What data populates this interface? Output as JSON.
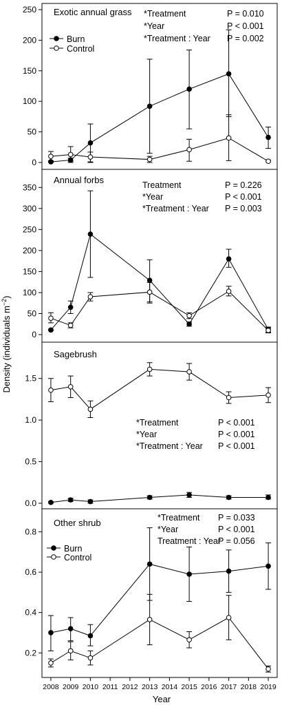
{
  "figure": {
    "ylabel_main": "Density (individuals m",
    "ylabel_sup": "−2",
    "ylabel_close": ")",
    "xlabel": "Year",
    "x_ticks": [
      2008,
      2009,
      2010,
      2011,
      2012,
      2013,
      2014,
      2015,
      2016,
      2017,
      2018,
      2019
    ]
  },
  "chart_data": [
    {
      "type": "line",
      "title": "Exotic annual grass",
      "ylim": [
        0,
        250
      ],
      "yticks": [
        0,
        50,
        100,
        150,
        200,
        250
      ],
      "legend": [
        "Burn",
        "Control"
      ],
      "stats": [
        {
          "term": "*Treatment",
          "p": "P = 0.010"
        },
        {
          "term": "*Year",
          "p": "P < 0.001"
        },
        {
          "term": "*Treatment : Year",
          "p": "P = 0.002"
        }
      ],
      "series": [
        {
          "name": "Burn",
          "x": [
            2008,
            2009,
            2010,
            2013,
            2015,
            2017,
            2019
          ],
          "y": [
            1,
            4,
            32,
            92,
            120,
            145,
            41
          ],
          "err_low": [
            0,
            2,
            0,
            15,
            55,
            75,
            23
          ],
          "err_high": [
            3,
            7,
            63,
            169,
            184,
            217,
            58
          ]
        },
        {
          "name": "Control",
          "x": [
            2008,
            2009,
            2010,
            2013,
            2015,
            2017,
            2019
          ],
          "y": [
            10,
            13,
            9,
            5,
            21,
            40,
            2
          ],
          "err_low": [
            2,
            0,
            1,
            0,
            2,
            3,
            1
          ],
          "err_high": [
            18,
            26,
            17,
            10,
            38,
            78,
            4
          ]
        }
      ]
    },
    {
      "type": "line",
      "title": "Annual forbs",
      "ylim": [
        0,
        375
      ],
      "yticks": [
        0,
        50,
        100,
        150,
        200,
        250,
        300,
        350
      ],
      "legend": [],
      "stats": [
        {
          "term": "Treatment",
          "p": "P = 0.226"
        },
        {
          "term": "*Year",
          "p": "P < 0.001"
        },
        {
          "term": "*Treatment : Year",
          "p": "P = 0.003"
        }
      ],
      "series": [
        {
          "name": "Burn",
          "x": [
            2008,
            2009,
            2010,
            2013,
            2015,
            2017,
            2019
          ],
          "y": [
            11,
            65,
            239,
            129,
            25,
            180,
            12
          ],
          "err_low": [
            9,
            50,
            136,
            75,
            20,
            160,
            6
          ],
          "err_high": [
            13,
            80,
            342,
            178,
            30,
            203,
            18
          ]
        },
        {
          "name": "Control",
          "x": [
            2008,
            2009,
            2010,
            2013,
            2015,
            2017,
            2019
          ],
          "y": [
            39,
            22,
            90,
            101,
            45,
            103,
            10
          ],
          "err_low": [
            28,
            16,
            80,
            78,
            38,
            92,
            4
          ],
          "err_high": [
            52,
            28,
            100,
            124,
            52,
            115,
            16
          ]
        }
      ]
    },
    {
      "type": "line",
      "title": "Sagebrush",
      "ylim": [
        -0.05,
        1.87
      ],
      "yticks": [
        0.0,
        0.5,
        1.0,
        1.5
      ],
      "legend": [],
      "stats": [
        {
          "term": "*Treatment",
          "p": "P < 0.001"
        },
        {
          "term": "*Year",
          "p": "P < 0.001"
        },
        {
          "term": "*Treatment : Year",
          "p": "P < 0.001"
        }
      ],
      "series": [
        {
          "name": "Burn",
          "x": [
            2008,
            2009,
            2010,
            2013,
            2015,
            2017,
            2019
          ],
          "y": [
            0.01,
            0.04,
            0.02,
            0.07,
            0.1,
            0.07,
            0.07
          ],
          "err_low": [
            0.0,
            0.02,
            0.0,
            0.05,
            0.07,
            0.05,
            0.05
          ],
          "err_high": [
            0.02,
            0.06,
            0.04,
            0.09,
            0.13,
            0.09,
            0.1
          ]
        },
        {
          "name": "Control",
          "x": [
            2008,
            2009,
            2010,
            2013,
            2015,
            2017,
            2019
          ],
          "y": [
            1.36,
            1.4,
            1.13,
            1.61,
            1.58,
            1.27,
            1.3
          ],
          "err_low": [
            1.22,
            1.27,
            1.03,
            1.53,
            1.48,
            1.2,
            1.21
          ],
          "err_high": [
            1.5,
            1.53,
            1.23,
            1.69,
            1.68,
            1.34,
            1.39
          ]
        }
      ]
    },
    {
      "type": "line",
      "title": "Other shrub",
      "ylim": [
        0.085,
        0.88
      ],
      "yticks": [
        0.2,
        0.4,
        0.6,
        0.8
      ],
      "legend": [
        "Burn",
        "Control"
      ],
      "stats": [
        {
          "term": "*Treatment",
          "p": "P = 0.033"
        },
        {
          "term": "*Year",
          "p": "P < 0.001"
        },
        {
          "term": "Treatment : Year",
          "p": "P = 0.056"
        }
      ],
      "series": [
        {
          "name": "Burn",
          "x": [
            2008,
            2009,
            2010,
            2013,
            2015,
            2017,
            2019
          ],
          "y": [
            0.3,
            0.32,
            0.285,
            0.64,
            0.59,
            0.605,
            0.63
          ],
          "err_low": [
            0.21,
            0.26,
            0.235,
            0.46,
            0.455,
            0.5,
            0.515
          ],
          "err_high": [
            0.385,
            0.375,
            0.34,
            0.82,
            0.725,
            0.71,
            0.745
          ]
        },
        {
          "name": "Control",
          "x": [
            2008,
            2009,
            2010,
            2013,
            2015,
            2017,
            2019
          ],
          "y": [
            0.15,
            0.21,
            0.175,
            0.365,
            0.265,
            0.375,
            0.12
          ],
          "err_low": [
            0.13,
            0.165,
            0.14,
            0.24,
            0.225,
            0.265,
            0.105
          ],
          "err_high": [
            0.17,
            0.255,
            0.21,
            0.49,
            0.305,
            0.485,
            0.135
          ]
        }
      ]
    }
  ]
}
